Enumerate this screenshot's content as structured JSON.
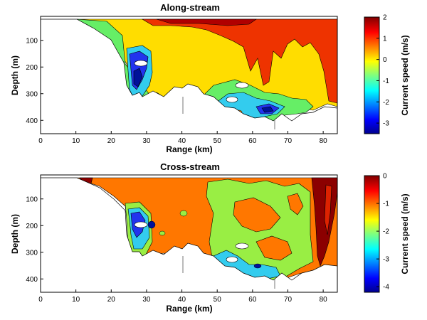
{
  "chart_data": [
    {
      "type": "heatmap",
      "title": "Along-stream",
      "xlabel": "Range (km)",
      "ylabel": "Depth (m)",
      "xlim": [
        0,
        84
      ],
      "ylim": [
        450,
        10
      ],
      "x_ticks": [
        "0",
        "10",
        "20",
        "30",
        "40",
        "50",
        "60",
        "70",
        "80"
      ],
      "y_ticks": [
        "100",
        "200",
        "300",
        "400"
      ],
      "colorbar": {
        "label": "Current speed (m/s)",
        "range": [
          -3.5,
          2
        ],
        "ticks": [
          "2",
          "1",
          "0",
          "-1",
          "-2",
          "-3"
        ]
      },
      "data_extent_km": [
        10,
        84
      ],
      "description_regions": [
        {
          "range_km": [
            26,
            36
          ],
          "depth_m": [
            70,
            340
          ],
          "speed": -3
        },
        {
          "range_km": [
            40,
            84
          ],
          "depth_m": [
            10,
            150
          ],
          "speed": 1.7
        },
        {
          "range_km": [
            28,
            84
          ],
          "depth_m": [
            100,
            350
          ],
          "speed": 0.1
        },
        {
          "range_km": [
            46,
            72
          ],
          "depth_m": [
            250,
            420
          ],
          "speed": -1.5
        }
      ]
    },
    {
      "type": "heatmap",
      "title": "Cross-stream",
      "xlabel": "Range (km)",
      "ylabel": "Depth (m)",
      "xlim": [
        0,
        84
      ],
      "ylim": [
        450,
        10
      ],
      "x_ticks": [
        "0",
        "10",
        "20",
        "30",
        "40",
        "50",
        "60",
        "70",
        "80"
      ],
      "y_ticks": [
        "100",
        "200",
        "300",
        "400"
      ],
      "colorbar": {
        "label": "Current speed (m/s)",
        "range": [
          -4.2,
          0
        ],
        "ticks": [
          "0",
          "-1",
          "-2",
          "-3",
          "-4"
        ]
      },
      "data_extent_km": [
        10,
        84
      ],
      "description_regions": [
        {
          "range_km": [
            10,
            84
          ],
          "depth_m": [
            10,
            420
          ],
          "speed": -0.9
        },
        {
          "range_km": [
            26,
            34
          ],
          "depth_m": [
            120,
            340
          ],
          "speed": -3.2
        },
        {
          "range_km": [
            50,
            75
          ],
          "depth_m": [
            50,
            420
          ],
          "speed": -2.2
        },
        {
          "range_km": [
            76,
            81
          ],
          "depth_m": [
            10,
            340
          ],
          "speed": -0.1
        }
      ]
    }
  ]
}
